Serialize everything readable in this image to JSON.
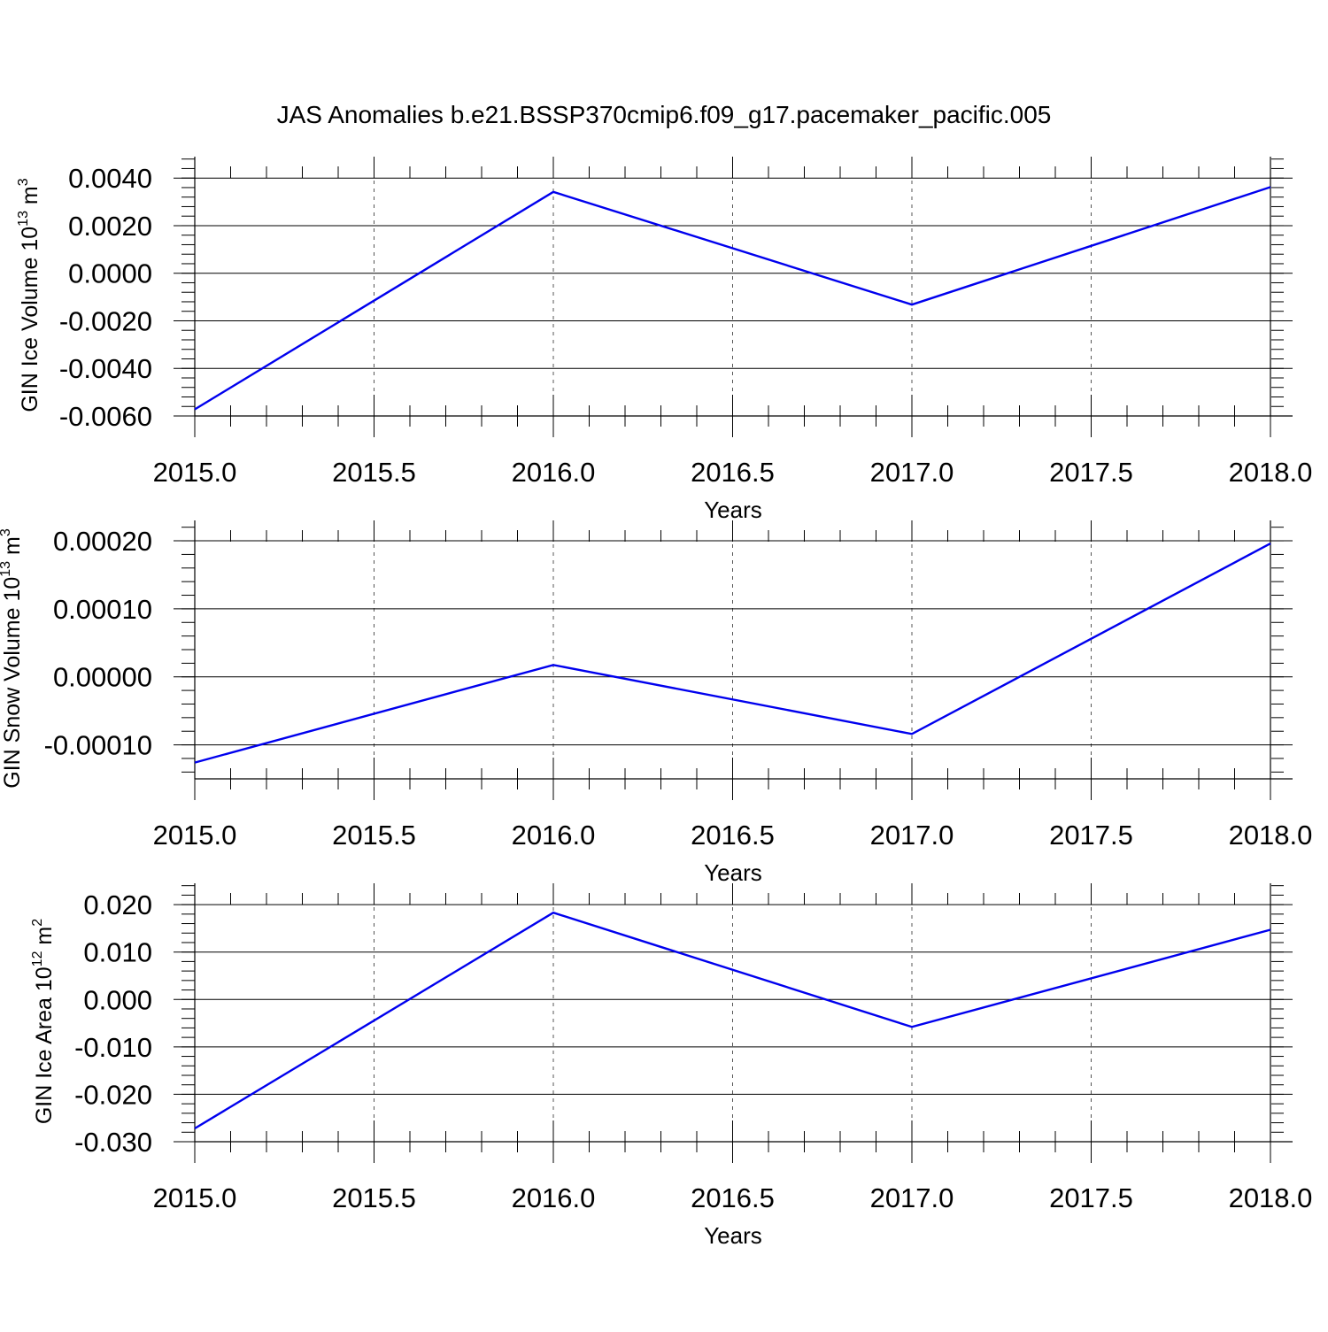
{
  "chart_data": {
    "title": "JAS Anomalies b.e21.BSSP370cmip6.f09_g17.pacemaker_pacific.005",
    "colors": {
      "line": "#0000ee",
      "axis": "#000000",
      "grid": "#555555"
    },
    "charts": [
      {
        "type": "line",
        "ylabel": {
          "main": "GIN Ice Volume 10",
          "sup": "13",
          "unit": " m",
          "unit_sup": "3"
        },
        "xlabel": "Years",
        "xlim": [
          2015.0,
          2018.0
        ],
        "ylim": [
          -0.006,
          0.0049
        ],
        "x_ticks": [
          "2015.0",
          "2015.5",
          "2016.0",
          "2016.5",
          "2017.0",
          "2017.5",
          "2018.0"
        ],
        "y_ticks": [
          {
            "value": 0.004,
            "label": "0.0040"
          },
          {
            "value": 0.002,
            "label": "0.0020"
          },
          {
            "value": 0.0,
            "label": "0.0000"
          },
          {
            "value": -0.002,
            "label": "-0.0020"
          },
          {
            "value": -0.004,
            "label": "-0.0040"
          },
          {
            "value": -0.006,
            "label": "-0.0060"
          }
        ],
        "grid": "vertical dashed",
        "x": [
          2015,
          2016,
          2017,
          2018
        ],
        "y": [
          -0.00572,
          0.00342,
          -0.00132,
          0.00362
        ]
      },
      {
        "type": "line",
        "ylabel": {
          "main": "GIN Snow Volume 10",
          "sup": "13",
          "unit": " m",
          "unit_sup": "3"
        },
        "xlabel": "Years",
        "xlim": [
          2015.0,
          2018.0
        ],
        "ylim": [
          -0.00015,
          0.00023
        ],
        "x_ticks": [
          "2015.0",
          "2015.5",
          "2016.0",
          "2016.5",
          "2017.0",
          "2017.5",
          "2018.0"
        ],
        "y_ticks": [
          {
            "value": 0.0002,
            "label": "0.00020"
          },
          {
            "value": 0.0001,
            "label": "0.00010"
          },
          {
            "value": 0.0,
            "label": "0.00000"
          },
          {
            "value": -0.0001,
            "label": "-0.00010"
          }
        ],
        "grid": "vertical dashed",
        "x": [
          2015,
          2016,
          2017,
          2018
        ],
        "y": [
          -0.000126,
          1.75e-05,
          -8.4e-05,
          0.000196
        ]
      },
      {
        "type": "line",
        "ylabel": {
          "main": "GIN Ice Area 10",
          "sup": "12",
          "unit": " m",
          "unit_sup": "2"
        },
        "xlabel": "Years",
        "xlim": [
          2015.0,
          2018.0
        ],
        "ylim": [
          -0.03,
          0.0245
        ],
        "x_ticks": [
          "2015.0",
          "2015.5",
          "2016.0",
          "2016.5",
          "2017.0",
          "2017.5",
          "2018.0"
        ],
        "y_ticks": [
          {
            "value": 0.02,
            "label": "0.020"
          },
          {
            "value": 0.01,
            "label": "0.010"
          },
          {
            "value": 0.0,
            "label": "0.000"
          },
          {
            "value": -0.01,
            "label": "-0.010"
          },
          {
            "value": -0.02,
            "label": "-0.020"
          },
          {
            "value": -0.03,
            "label": "-0.030"
          }
        ],
        "grid": "vertical dashed",
        "x": [
          2015,
          2016,
          2017,
          2018
        ],
        "y": [
          -0.0272,
          0.0183,
          -0.0058,
          0.0147
        ]
      }
    ]
  }
}
